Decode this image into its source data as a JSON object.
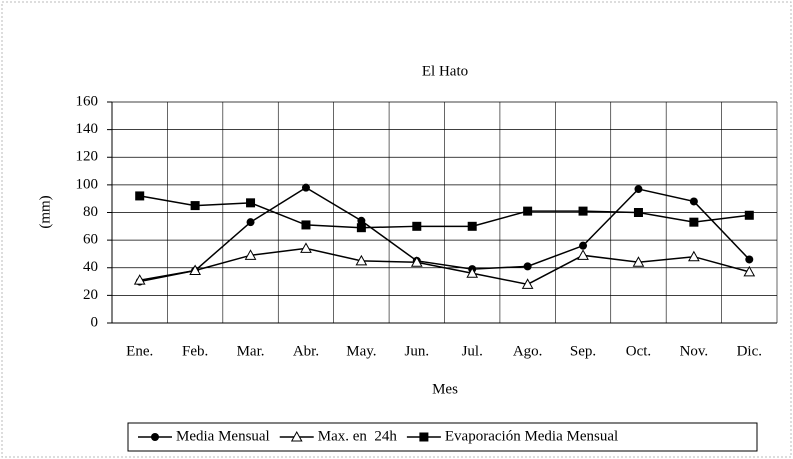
{
  "chart_data": {
    "type": "line",
    "title": "El Hato",
    "x_label": "Mes",
    "y_label": "(mm)",
    "categories": [
      "Ene.",
      "Feb.",
      "Mar.",
      "Abr.",
      "May.",
      "Jun.",
      "Jul.",
      "Ago.",
      "Sep.",
      "Oct.",
      "Nov.",
      "Dic."
    ],
    "series": [
      {
        "name": "Media Mensual",
        "color": "#000000",
        "marker": "circle",
        "values": [
          30,
          38,
          73,
          98,
          74,
          45,
          39,
          41,
          56,
          97,
          88,
          46
        ]
      },
      {
        "name": "Max. en  24h",
        "color": "#000000",
        "marker": "triangle",
        "values": [
          31,
          38,
          49,
          54,
          45,
          44,
          36,
          28,
          49,
          44,
          48,
          37
        ]
      },
      {
        "name": "Evaporación Media Mensual",
        "color": "#000000",
        "marker": "square",
        "values": [
          92,
          85,
          87,
          71,
          69,
          70,
          70,
          81,
          81,
          80,
          73,
          78
        ]
      }
    ],
    "ylim": [
      0,
      160
    ],
    "yticks": [
      0,
      20,
      40,
      60,
      80,
      100,
      120,
      140,
      160
    ],
    "grid": true,
    "legend": "bottom"
  }
}
